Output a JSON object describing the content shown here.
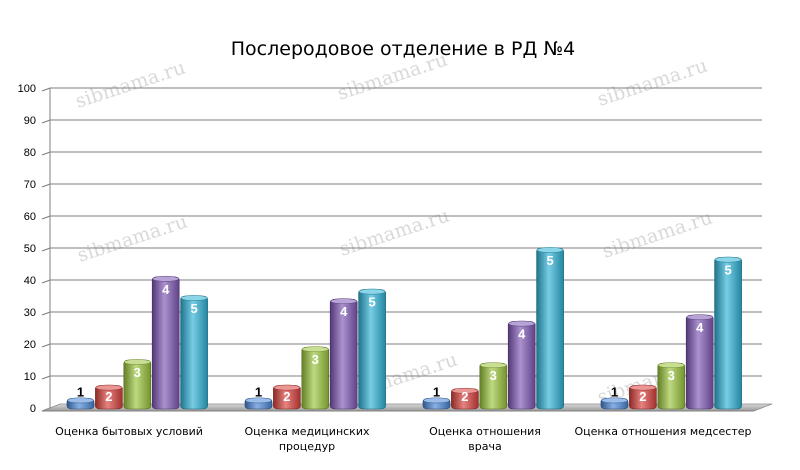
{
  "chart_data": {
    "type": "bar",
    "title": "Послеродовое отделение в РД №4",
    "categories": [
      [
        "Оценка бытовых условий"
      ],
      [
        "Оценка медицинских",
        "процедур"
      ],
      [
        "Оценка отношения",
        "врача"
      ],
      [
        "Оценка отношения медсестер"
      ]
    ],
    "series": [
      {
        "name": "1",
        "values": [
          3,
          3,
          3,
          3
        ]
      },
      {
        "name": "2",
        "values": [
          7,
          7,
          6,
          7
        ]
      },
      {
        "name": "3",
        "values": [
          15,
          19,
          14,
          14
        ]
      },
      {
        "name": "4",
        "values": [
          41,
          34,
          27,
          29
        ]
      },
      {
        "name": "5",
        "values": [
          35,
          37,
          50,
          47
        ]
      }
    ],
    "data_labels": [
      "1",
      "2",
      "3",
      "4",
      "5"
    ],
    "ylim": [
      0,
      100
    ],
    "yticks": [
      "0",
      "10",
      "20",
      "30",
      "40",
      "50",
      "60",
      "70",
      "80",
      "90",
      "100"
    ],
    "grid": true,
    "legend": "none",
    "style": "3d-cylinders",
    "colors": {
      "series": [
        "#4a86d6",
        "#d8403c",
        "#9bc43b",
        "#7e57b5",
        "#2eb2d6"
      ],
      "label_text": [
        "#000000",
        "#ffffff",
        "#ffffff",
        "#ffffff",
        "#ffffff"
      ],
      "grid": "#7f7f7f",
      "floor": "#b3b3b3"
    },
    "watermark": "sibmama.ru"
  }
}
